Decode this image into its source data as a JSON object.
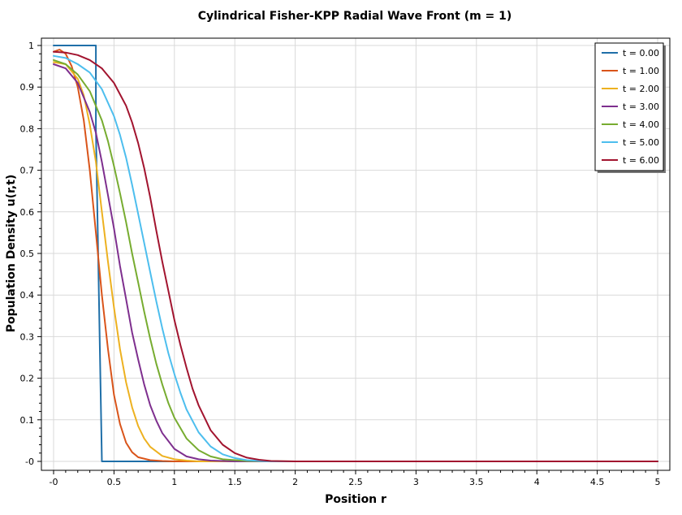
{
  "chart_data": {
    "type": "line",
    "title": "Cylindrical Fisher-KPP Radial Wave Front (m = 1)",
    "xlabel": "Position r",
    "ylabel": "Population Density u(r,t)",
    "xlim": [
      0,
      5
    ],
    "ylim": [
      0,
      1
    ],
    "grid": true,
    "legend_position": "top-right",
    "x_ticks": [
      0,
      0.5,
      1,
      1.5,
      2,
      2.5,
      3,
      3.5,
      4,
      4.5,
      5
    ],
    "x_tick_labels": [
      "-0",
      "0.5",
      "1",
      "1.5",
      "2",
      "2.5",
      "3",
      "3.5",
      "4",
      "4.5",
      "5"
    ],
    "y_ticks": [
      0,
      0.1,
      0.2,
      0.3,
      0.4,
      0.5,
      0.6,
      0.7,
      0.8,
      0.9,
      1
    ],
    "y_tick_labels": [
      "-0",
      "0.1",
      "0.2",
      "0.3",
      "0.4",
      "0.5",
      "0.6",
      "0.7",
      "0.8",
      "0.9",
      "1"
    ],
    "series": [
      {
        "name": "t = 0.00",
        "color": "#1f6fa8",
        "x": [
          0,
          0.35,
          0.35,
          0.4,
          0.4,
          5.0
        ],
        "y": [
          1.0,
          1.0,
          0.8,
          0.0,
          0.0,
          0.0
        ]
      },
      {
        "name": "t = 1.00",
        "color": "#d9541a",
        "x": [
          0,
          0.05,
          0.1,
          0.15,
          0.2,
          0.25,
          0.3,
          0.35,
          0.4,
          0.45,
          0.5,
          0.55,
          0.6,
          0.65,
          0.7,
          0.8,
          0.9,
          1.0,
          1.2,
          1.5,
          2.0,
          5.0
        ],
        "y": [
          0.985,
          0.99,
          0.98,
          0.95,
          0.9,
          0.82,
          0.7,
          0.55,
          0.4,
          0.27,
          0.16,
          0.09,
          0.045,
          0.022,
          0.01,
          0.003,
          0.001,
          0.0,
          0.0,
          0.0,
          0.0,
          0.0
        ]
      },
      {
        "name": "t = 2.00",
        "color": "#edb120",
        "x": [
          0,
          0.1,
          0.2,
          0.25,
          0.3,
          0.35,
          0.4,
          0.45,
          0.5,
          0.55,
          0.6,
          0.65,
          0.7,
          0.75,
          0.8,
          0.9,
          1.0,
          1.1,
          1.2,
          1.5,
          2.0,
          5.0
        ],
        "y": [
          0.96,
          0.955,
          0.92,
          0.88,
          0.81,
          0.72,
          0.6,
          0.48,
          0.37,
          0.27,
          0.19,
          0.13,
          0.085,
          0.055,
          0.035,
          0.013,
          0.005,
          0.002,
          0.0,
          0.0,
          0.0,
          0.0
        ]
      },
      {
        "name": "t = 3.00",
        "color": "#7e2f8e",
        "x": [
          0,
          0.1,
          0.2,
          0.3,
          0.35,
          0.4,
          0.45,
          0.5,
          0.55,
          0.6,
          0.65,
          0.7,
          0.75,
          0.8,
          0.85,
          0.9,
          1.0,
          1.1,
          1.2,
          1.3,
          1.5,
          2.0,
          5.0
        ],
        "y": [
          0.955,
          0.945,
          0.91,
          0.84,
          0.79,
          0.72,
          0.64,
          0.56,
          0.47,
          0.39,
          0.31,
          0.245,
          0.185,
          0.135,
          0.098,
          0.068,
          0.03,
          0.012,
          0.005,
          0.002,
          0.0,
          0.0,
          0.0
        ]
      },
      {
        "name": "t = 4.00",
        "color": "#77ac30",
        "x": [
          0,
          0.1,
          0.2,
          0.3,
          0.4,
          0.45,
          0.5,
          0.55,
          0.6,
          0.65,
          0.7,
          0.75,
          0.8,
          0.85,
          0.9,
          0.95,
          1.0,
          1.1,
          1.2,
          1.3,
          1.4,
          1.6,
          2.0,
          5.0
        ],
        "y": [
          0.965,
          0.955,
          0.93,
          0.89,
          0.82,
          0.77,
          0.71,
          0.645,
          0.575,
          0.5,
          0.43,
          0.36,
          0.295,
          0.235,
          0.185,
          0.14,
          0.105,
          0.055,
          0.027,
          0.012,
          0.005,
          0.001,
          0.0,
          0.0
        ]
      },
      {
        "name": "t = 5.00",
        "color": "#4dbeee",
        "x": [
          0,
          0.1,
          0.2,
          0.3,
          0.4,
          0.5,
          0.55,
          0.6,
          0.65,
          0.7,
          0.75,
          0.8,
          0.85,
          0.9,
          0.95,
          1.0,
          1.05,
          1.1,
          1.2,
          1.3,
          1.4,
          1.5,
          1.6,
          1.8,
          2.0,
          5.0
        ],
        "y": [
          0.975,
          0.97,
          0.955,
          0.935,
          0.895,
          0.83,
          0.785,
          0.73,
          0.665,
          0.595,
          0.525,
          0.455,
          0.385,
          0.32,
          0.26,
          0.21,
          0.165,
          0.125,
          0.07,
          0.036,
          0.017,
          0.008,
          0.003,
          0.0,
          0.0,
          0.0
        ]
      },
      {
        "name": "t = 6.00",
        "color": "#a2142f",
        "x": [
          0,
          0.1,
          0.2,
          0.3,
          0.4,
          0.5,
          0.6,
          0.65,
          0.7,
          0.75,
          0.8,
          0.85,
          0.9,
          0.95,
          1.0,
          1.05,
          1.1,
          1.15,
          1.2,
          1.3,
          1.4,
          1.5,
          1.6,
          1.7,
          1.8,
          2.0,
          5.0
        ],
        "y": [
          0.985,
          0.983,
          0.977,
          0.965,
          0.945,
          0.91,
          0.855,
          0.815,
          0.765,
          0.705,
          0.635,
          0.555,
          0.48,
          0.41,
          0.34,
          0.28,
          0.225,
          0.175,
          0.135,
          0.075,
          0.04,
          0.02,
          0.009,
          0.004,
          0.001,
          0.0,
          0.0
        ]
      }
    ]
  }
}
